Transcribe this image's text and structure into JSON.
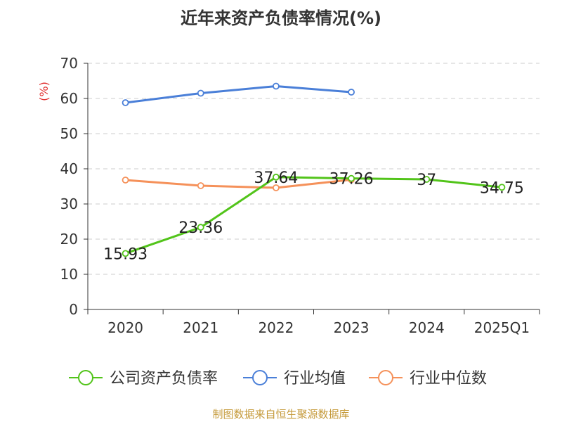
{
  "chart_data": {
    "type": "line",
    "title": "近年来资产负债率情况(%)",
    "ylabel": "(%)",
    "categories": [
      "2020",
      "2021",
      "2022",
      "2023",
      "2024",
      "2025Q1"
    ],
    "ylim": [
      0,
      70
    ],
    "yticks": [
      0,
      10,
      20,
      30,
      40,
      50,
      60,
      70
    ],
    "grid": true,
    "legend_position": "bottom",
    "series": [
      {
        "name": "公司资产负债率",
        "color": "#52c41a",
        "values": [
          15.93,
          23.36,
          37.64,
          37.26,
          37,
          34.75
        ],
        "labels": [
          "15.93",
          "23.36",
          "37.64",
          "37.26",
          "37",
          "34.75"
        ]
      },
      {
        "name": "行业均值",
        "color": "#4a7fd8",
        "values": [
          58.8,
          61.5,
          63.5,
          61.8,
          null,
          null
        ]
      },
      {
        "name": "行业中位数",
        "color": "#f5915a",
        "values": [
          36.8,
          35.2,
          34.6,
          36.9,
          null,
          null
        ]
      }
    ]
  },
  "source": "制图数据来自恒生聚源数据库"
}
